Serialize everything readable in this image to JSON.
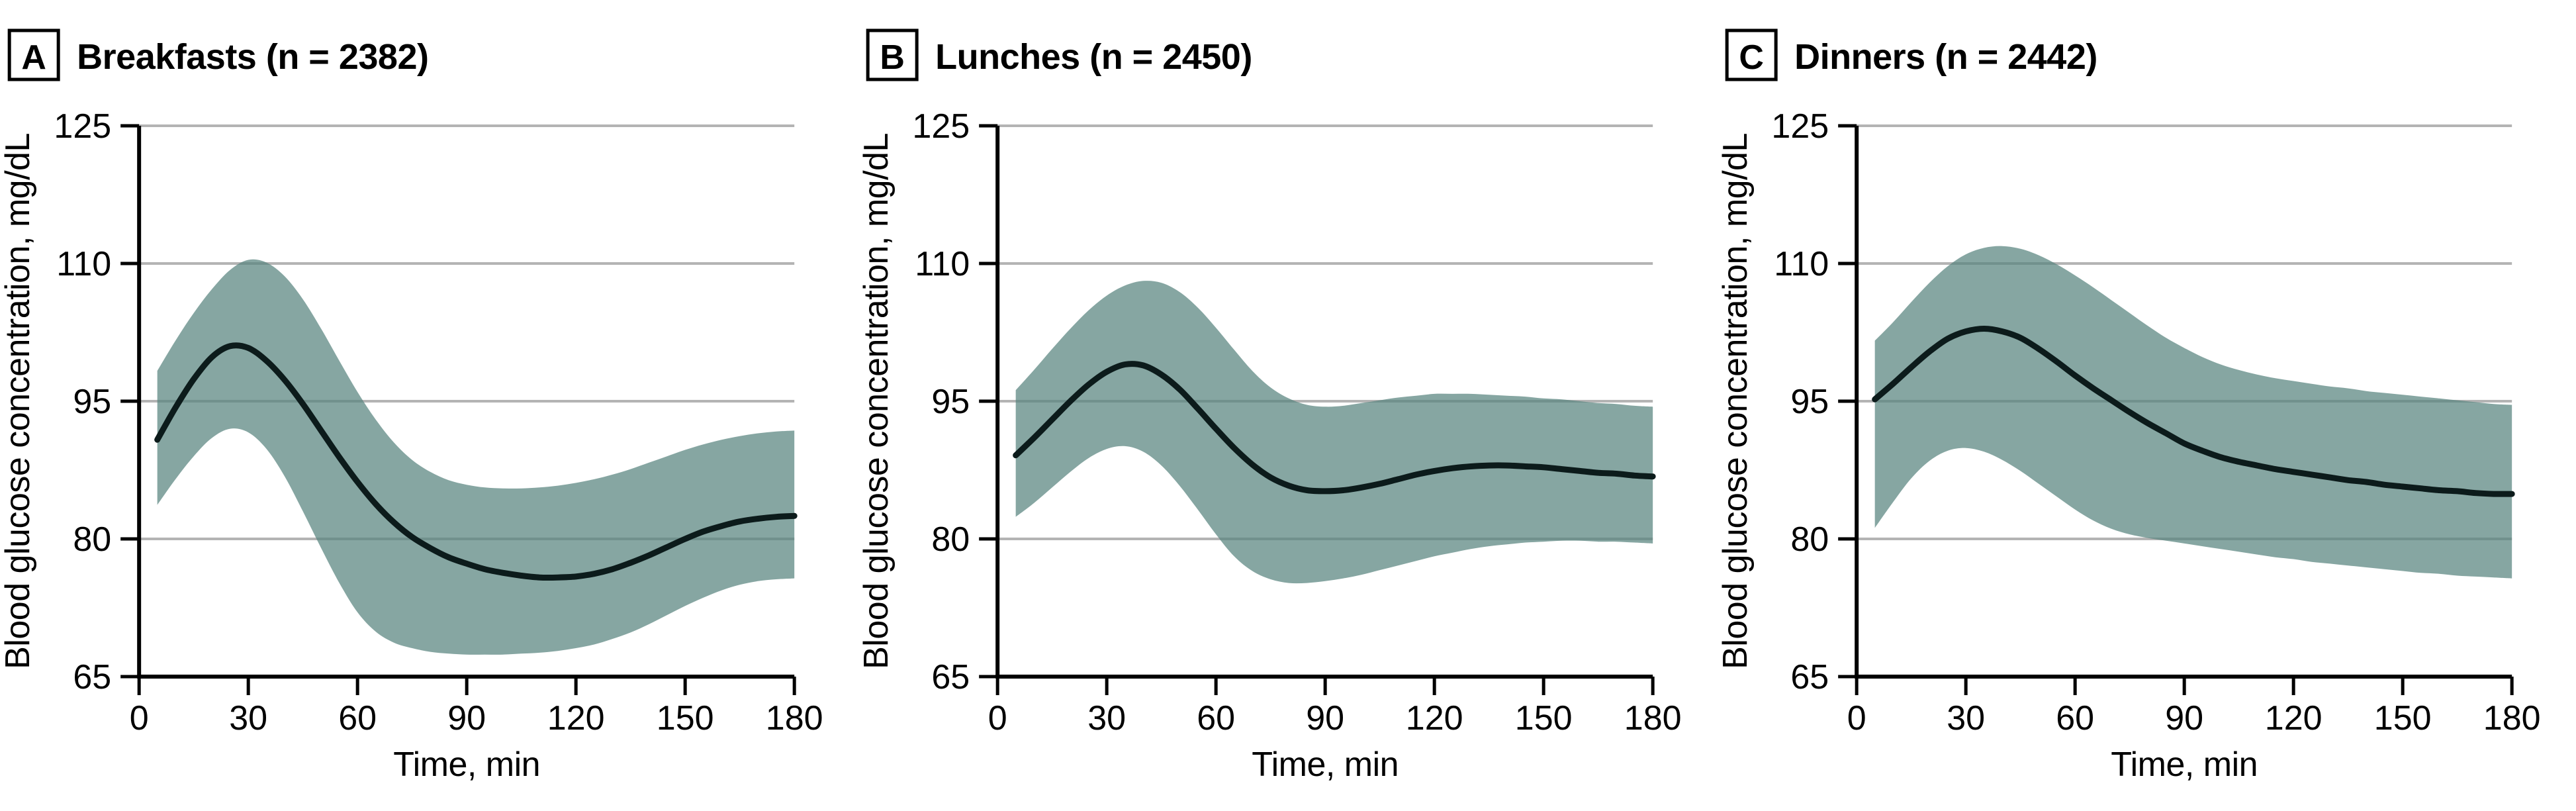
{
  "figure": {
    "y_ticks": [
      65,
      80,
      95,
      110,
      125
    ],
    "x_ticks": [
      0,
      30,
      60,
      90,
      120,
      150,
      180
    ],
    "ylim": [
      65,
      125
    ],
    "xlim": [
      0,
      180
    ],
    "grid": "horizontal-gridlines-at-y-ticks",
    "legend": "none",
    "colors": {
      "band": "rgba(88,131,126,0.72)",
      "band_solid_on_white": "#87a6a2",
      "mean_line": "#0c1b1b",
      "gridline": "#b4b4b4",
      "axis": "#000000",
      "text": "#000000",
      "background": "#ffffff"
    }
  },
  "chart_data": [
    {
      "type": "area",
      "panel_letter": "A",
      "title": "Breakfasts (n = 2382)",
      "n": 2382,
      "xlabel": "Time, min",
      "ylabel": "Blood glucose concentration, mg/dL",
      "x": [
        5,
        10,
        15,
        20,
        25,
        30,
        35,
        40,
        45,
        50,
        55,
        60,
        65,
        70,
        75,
        80,
        85,
        90,
        95,
        100,
        105,
        110,
        115,
        120,
        125,
        130,
        135,
        140,
        145,
        150,
        155,
        160,
        165,
        170,
        175,
        180
      ],
      "series": [
        {
          "name": "mean",
          "values": [
            90.8,
            94.3,
            97.4,
            99.8,
            101.0,
            100.8,
            99.4,
            97.3,
            94.7,
            91.8,
            88.9,
            86.2,
            83.8,
            81.8,
            80.2,
            79.0,
            78.0,
            77.3,
            76.7,
            76.3,
            76.0,
            75.8,
            75.8,
            75.9,
            76.2,
            76.7,
            77.4,
            78.2,
            79.1,
            80.0,
            80.8,
            81.4,
            81.9,
            82.2,
            82.4,
            82.5
          ]
        },
        {
          "name": "ci_upper",
          "values": [
            98.3,
            101.6,
            104.6,
            107.2,
            109.3,
            110.4,
            110.1,
            108.6,
            106.1,
            102.9,
            99.4,
            96.0,
            93.0,
            90.5,
            88.6,
            87.3,
            86.4,
            85.9,
            85.6,
            85.5,
            85.5,
            85.6,
            85.8,
            86.1,
            86.5,
            87.0,
            87.6,
            88.3,
            89.0,
            89.7,
            90.3,
            90.8,
            91.2,
            91.5,
            91.7,
            91.8
          ]
        },
        {
          "name": "ci_lower",
          "values": [
            83.7,
            86.5,
            89.0,
            91.0,
            92.0,
            91.6,
            89.8,
            86.8,
            83.0,
            79.0,
            75.2,
            72.0,
            69.9,
            68.7,
            68.1,
            67.7,
            67.5,
            67.4,
            67.4,
            67.4,
            67.5,
            67.6,
            67.8,
            68.1,
            68.5,
            69.1,
            69.8,
            70.7,
            71.7,
            72.7,
            73.6,
            74.4,
            75.0,
            75.4,
            75.6,
            75.7
          ]
        }
      ]
    },
    {
      "type": "area",
      "panel_letter": "B",
      "title": "Lunches (n = 2450)",
      "n": 2450,
      "xlabel": "Time, min",
      "ylabel": "Blood glucose concentration, mg/dL",
      "x": [
        5,
        10,
        15,
        20,
        25,
        30,
        35,
        40,
        45,
        50,
        55,
        60,
        65,
        70,
        75,
        80,
        85,
        90,
        95,
        100,
        105,
        110,
        115,
        120,
        125,
        130,
        135,
        140,
        145,
        150,
        155,
        160,
        165,
        170,
        175,
        180
      ],
      "series": [
        {
          "name": "mean",
          "values": [
            89.1,
            91.0,
            93.0,
            95.0,
            96.8,
            98.2,
            99.0,
            98.9,
            97.9,
            96.3,
            94.2,
            92.0,
            89.9,
            88.1,
            86.7,
            85.8,
            85.3,
            85.2,
            85.3,
            85.6,
            86.0,
            86.5,
            87.0,
            87.4,
            87.7,
            87.9,
            88.0,
            88.0,
            87.9,
            87.8,
            87.6,
            87.4,
            87.2,
            87.1,
            86.9,
            86.8
          ]
        },
        {
          "name": "ci_upper",
          "values": [
            96.2,
            98.4,
            100.7,
            102.9,
            104.9,
            106.5,
            107.6,
            108.1,
            107.9,
            106.9,
            105.2,
            103.0,
            100.6,
            98.3,
            96.5,
            95.3,
            94.6,
            94.4,
            94.5,
            94.8,
            95.1,
            95.4,
            95.6,
            95.8,
            95.8,
            95.8,
            95.7,
            95.6,
            95.5,
            95.3,
            95.2,
            95.0,
            94.8,
            94.7,
            94.5,
            94.4
          ]
        },
        {
          "name": "ci_lower",
          "values": [
            82.4,
            83.9,
            85.6,
            87.3,
            88.8,
            89.8,
            90.1,
            89.5,
            88.0,
            85.8,
            83.2,
            80.5,
            78.1,
            76.5,
            75.6,
            75.2,
            75.2,
            75.4,
            75.7,
            76.1,
            76.6,
            77.1,
            77.6,
            78.1,
            78.5,
            78.9,
            79.2,
            79.4,
            79.6,
            79.7,
            79.8,
            79.8,
            79.7,
            79.7,
            79.6,
            79.5
          ]
        }
      ]
    },
    {
      "type": "area",
      "panel_letter": "C",
      "title": "Dinners (n = 2442)",
      "n": 2442,
      "xlabel": "Time, min",
      "ylabel": "Blood glucose concentration, mg/dL",
      "x": [
        5,
        10,
        15,
        20,
        25,
        30,
        35,
        40,
        45,
        50,
        55,
        60,
        65,
        70,
        75,
        80,
        85,
        90,
        95,
        100,
        105,
        110,
        115,
        120,
        125,
        130,
        135,
        140,
        145,
        150,
        155,
        160,
        165,
        170,
        175,
        180
      ],
      "series": [
        {
          "name": "mean",
          "values": [
            95.2,
            96.9,
            98.7,
            100.4,
            101.8,
            102.6,
            102.9,
            102.6,
            101.9,
            100.7,
            99.3,
            97.8,
            96.4,
            95.1,
            93.8,
            92.6,
            91.5,
            90.4,
            89.6,
            88.9,
            88.4,
            88.0,
            87.6,
            87.3,
            87.0,
            86.7,
            86.4,
            86.2,
            85.9,
            85.7,
            85.5,
            85.3,
            85.2,
            85.0,
            84.9,
            84.9
          ]
        },
        {
          "name": "ci_upper",
          "values": [
            101.6,
            103.6,
            105.8,
            107.9,
            109.7,
            111.0,
            111.7,
            111.9,
            111.6,
            110.9,
            109.9,
            108.7,
            107.4,
            106.0,
            104.6,
            103.2,
            101.9,
            100.8,
            99.8,
            99.0,
            98.4,
            97.9,
            97.5,
            97.2,
            96.9,
            96.6,
            96.4,
            96.1,
            95.9,
            95.7,
            95.5,
            95.3,
            95.1,
            94.9,
            94.7,
            94.6
          ]
        },
        {
          "name": "ci_lower",
          "values": [
            81.2,
            84.0,
            86.6,
            88.5,
            89.6,
            89.9,
            89.5,
            88.6,
            87.4,
            86.0,
            84.6,
            83.2,
            82.0,
            81.1,
            80.5,
            80.1,
            79.8,
            79.5,
            79.2,
            78.9,
            78.6,
            78.3,
            78.0,
            77.8,
            77.5,
            77.3,
            77.1,
            76.9,
            76.7,
            76.5,
            76.3,
            76.2,
            76.0,
            75.9,
            75.8,
            75.7
          ]
        }
      ]
    }
  ]
}
